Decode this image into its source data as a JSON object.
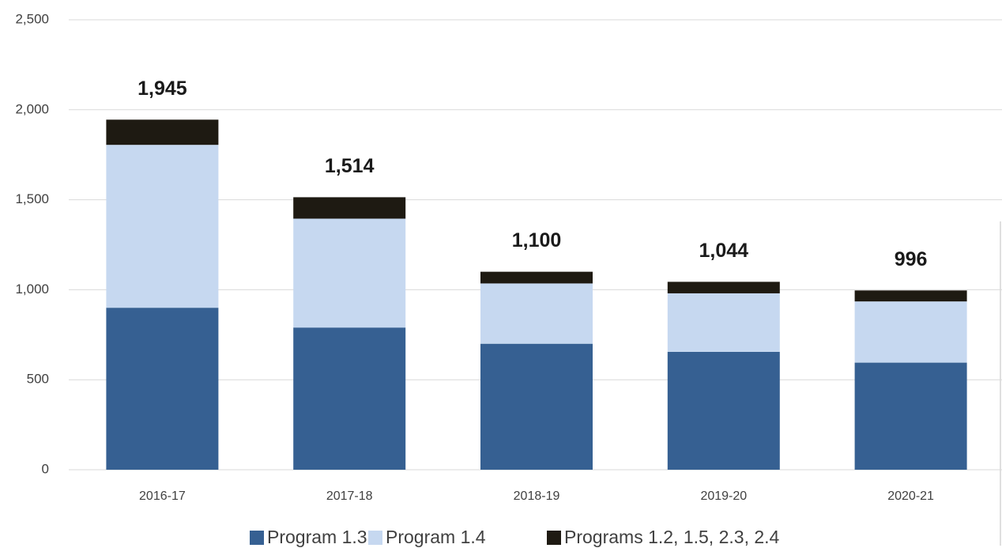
{
  "chart_data": {
    "type": "stacked_bar",
    "categories": [
      "2016-17",
      "2017-18",
      "2018-19",
      "2019-20",
      "2020-21"
    ],
    "series": [
      {
        "name": "Program 1.3",
        "color": "#366092",
        "values": [
          900,
          790,
          700,
          655,
          595
        ]
      },
      {
        "name": "Program 1.4",
        "color": "#c6d8f0",
        "values": [
          905,
          605,
          335,
          325,
          340
        ]
      },
      {
        "name": "Programs 1.2, 1.5, 2.3, 2.4",
        "color": "#1e1a12",
        "values": [
          140,
          119,
          65,
          64,
          61
        ]
      }
    ],
    "totals": {
      "values": [
        1945,
        1514,
        1100,
        1044,
        996
      ],
      "value_labels": [
        "1,945",
        "1,514",
        "1,100",
        "1,044",
        "996"
      ]
    },
    "ylim": [
      0,
      2500
    ],
    "yticks": [
      0,
      500,
      {
        "value": 1000,
        "label": "1,000"
      },
      {
        "value": 1500,
        "label": "1,500"
      },
      {
        "value": 2000,
        "label": "2,000"
      },
      {
        "value": 2500,
        "label": "2,500"
      }
    ],
    "grid": true,
    "legend": "bottom"
  }
}
